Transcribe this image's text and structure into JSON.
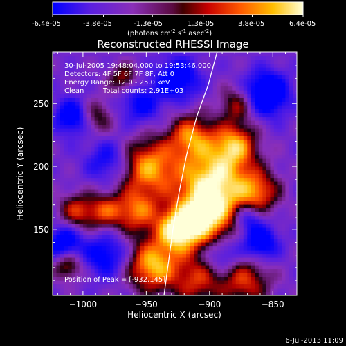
{
  "colorbar": {
    "tick_labels": [
      "-6.4e-05",
      "-3.8e-05",
      "-1.3e-05",
      "1.3e-05",
      "3.8e-05",
      "6.4e-05"
    ],
    "units_prefix": "(photons cm",
    "units_exp1": "-2",
    "units_mid": " s",
    "units_exp2": "-1",
    "units_mid2": " asec",
    "units_exp3": "-2",
    "units_suffix": ")",
    "range": [
      -6.4e-05,
      6.4e-05
    ]
  },
  "annotations": {
    "line1": "30-Jul-2005 19:48:04.000 to 19:53:46.000",
    "line2": "Detectors: 4F 5F 6F 7F 8F, Att 0",
    "line3": "Energy Range: 12.0 - 25.0 keV",
    "line4_a": "Clean",
    "line4_b": "Total counts: 2.91E+03",
    "peak": "Position of Peak = [-932,145]"
  },
  "footer": {
    "timestamp": "6-Jul-2013 11:09"
  },
  "chart_data": {
    "type": "heatmap",
    "title": "Reconstructed RHESSI Image",
    "xlabel": "Heliocentric X (arcsec)",
    "ylabel": "Heliocentric Y (arcsec)",
    "xlim": [
      -1024,
      -831
    ],
    "ylim": [
      98,
      291
    ],
    "x_ticks": [
      -1000,
      -950,
      -900,
      -850
    ],
    "x_tick_labels": [
      "−1000",
      "−950",
      "−900",
      "−850"
    ],
    "y_ticks": [
      150,
      200,
      250
    ],
    "y_tick_labels": [
      "150",
      "200",
      "250"
    ],
    "peak": [
      -932,
      145
    ],
    "limb_curve": [
      [
        -936,
        98
      ],
      [
        -933,
        120
      ],
      [
        -929,
        150
      ],
      [
        -924,
        180
      ],
      [
        -918,
        210
      ],
      [
        -910,
        240
      ],
      [
        -901,
        265
      ],
      [
        -894,
        291
      ]
    ],
    "sources": [
      {
        "x": -925,
        "y": 150,
        "w": 12,
        "v": 1.0
      },
      {
        "x": -945,
        "y": 122,
        "w": 14,
        "v": 0.9
      },
      {
        "x": -948,
        "y": 200,
        "w": 16,
        "v": 0.8
      },
      {
        "x": -958,
        "y": 165,
        "w": 12,
        "v": 0.6
      },
      {
        "x": -897,
        "y": 190,
        "w": 20,
        "v": 1.0
      },
      {
        "x": -903,
        "y": 160,
        "w": 16,
        "v": 0.85
      },
      {
        "x": -915,
        "y": 225,
        "w": 12,
        "v": 0.6
      },
      {
        "x": -880,
        "y": 218,
        "w": 12,
        "v": 0.65
      },
      {
        "x": -862,
        "y": 180,
        "w": 12,
        "v": 0.55
      },
      {
        "x": -872,
        "y": 110,
        "w": 14,
        "v": 0.5
      },
      {
        "x": -910,
        "y": 110,
        "w": 14,
        "v": 0.45
      },
      {
        "x": -983,
        "y": 165,
        "w": 10,
        "v": 0.45
      },
      {
        "x": -1005,
        "y": 165,
        "w": 10,
        "v": 0.45
      },
      {
        "x": -1012,
        "y": 122,
        "w": 8,
        "v": 0.45
      },
      {
        "x": -968,
        "y": 270,
        "w": 8,
        "v": 0.4
      },
      {
        "x": -990,
        "y": 240,
        "w": 10,
        "v": 0.3
      },
      {
        "x": -878,
        "y": 250,
        "w": 10,
        "v": 0.35
      },
      {
        "x": -980,
        "y": 205,
        "w": 12,
        "v": -0.3
      },
      {
        "x": -1008,
        "y": 240,
        "w": 10,
        "v": -0.55
      },
      {
        "x": -855,
        "y": 258,
        "w": 12,
        "v": -0.8
      },
      {
        "x": -925,
        "y": 270,
        "w": 12,
        "v": -0.5
      },
      {
        "x": -1015,
        "y": 140,
        "w": 10,
        "v": -0.5
      },
      {
        "x": -860,
        "y": 140,
        "w": 10,
        "v": -0.55
      },
      {
        "x": -982,
        "y": 130,
        "w": 12,
        "v": -0.4
      },
      {
        "x": -890,
        "y": 130,
        "w": 10,
        "v": -0.3
      },
      {
        "x": -870,
        "y": 160,
        "w": 8,
        "v": -0.35
      },
      {
        "x": -955,
        "y": 250,
        "w": 12,
        "v": -0.3
      }
    ]
  }
}
